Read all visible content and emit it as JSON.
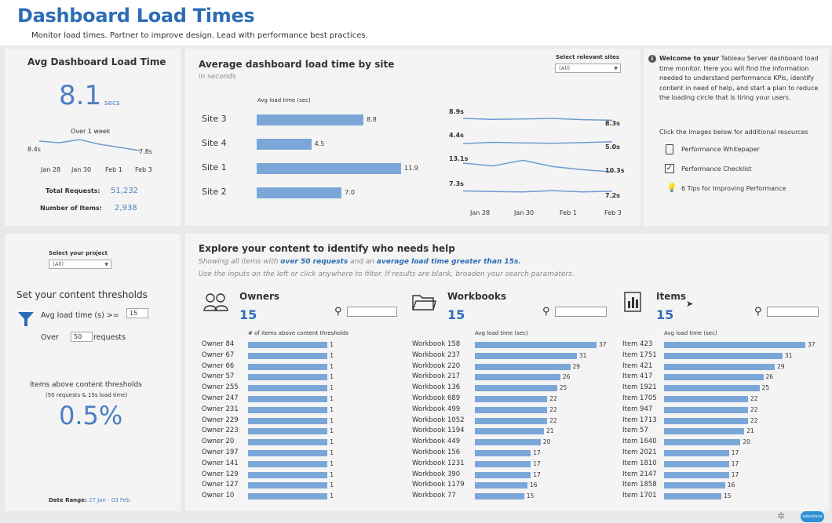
{
  "header": {
    "title": "Dashboard Load Times",
    "subtitle": "Monitor load times. Partner to improve design. Lead with performance best practices."
  },
  "kpi": {
    "title": "Avg Dashboard Load Time",
    "value": "8.1",
    "unit": "secs",
    "spark_title": "Over 1 week",
    "spark_start": "8.4s",
    "spark_end": "7.8s",
    "spark_values": [
      8.4,
      8.3,
      8.5,
      8.2,
      8.0,
      7.8
    ],
    "dates": [
      "Jan 28",
      "Jan 30",
      "Feb 1",
      "Feb 3"
    ],
    "total_requests_label": "Total Requests:",
    "total_requests": "51,232",
    "items_label": "Number of Items:",
    "items": "2,938"
  },
  "site_chart": {
    "title": "Average dashboard load time by site",
    "subtitle": "in seconds",
    "filter_label": "Select relevant sites",
    "filter_value": "(All)",
    "axis_label": "Avg load time (sec)",
    "max": 11.9,
    "sites": [
      {
        "name": "Site 3",
        "value": 8.8,
        "label": "8.8",
        "start": "8.9s",
        "end": "8.3s",
        "trend": [
          8.9,
          8.6,
          8.7,
          8.9,
          8.5,
          8.3
        ]
      },
      {
        "name": "Site 4",
        "value": 4.5,
        "label": "4.5",
        "start": "4.4s",
        "end": "5.0s",
        "trend": [
          4.4,
          4.8,
          4.6,
          4.5,
          4.7,
          5.0
        ]
      },
      {
        "name": "Site 1",
        "value": 11.9,
        "label": "11.9",
        "start": "13.1s",
        "end": "10.3s",
        "trend": [
          13.1,
          12.2,
          14.0,
          12.0,
          11.0,
          10.3
        ]
      },
      {
        "name": "Site 2",
        "value": 7.0,
        "label": "7.0",
        "start": "7.3s",
        "end": "7.2s",
        "trend": [
          7.3,
          7.1,
          7.0,
          7.4,
          7.0,
          7.2
        ]
      }
    ],
    "dates": [
      "Jan 28",
      "Jan 30",
      "Feb 1",
      "Feb 3"
    ]
  },
  "info": {
    "welcome_bold": "Welcome to your",
    "welcome_text": "Tableau Server dashboard load time monitor. Here you will find the information needed to understand performance KPIs, identify content in need of help, and start a plan to reduce the loading circle that is tiring your users.",
    "resources_intro": "Click the images below for additional resources",
    "links": [
      "Performance Whitepaper",
      "Performance Checklist",
      "6 Tips for Improving Performance"
    ]
  },
  "controls": {
    "project_label": "Select your project",
    "project_value": "(All)",
    "thresholds_title": "Set your content thresholds",
    "load_label": "Avg load time (s) >=",
    "load_value": "15",
    "over_label": "Over",
    "over_value": "50",
    "requests_label": "requests",
    "above_title": "Items above content thresholds",
    "above_sub": "(50 requests & 15s load time)",
    "above_value": "0.5%",
    "date_range_label": "Date Range:",
    "date_range": "27 Jan - 03 Feb"
  },
  "explore": {
    "title": "Explore your content to identify who needs help",
    "line1_a": "Showing all items with ",
    "line1_b": "over 50 requests",
    "line1_c": " and an ",
    "line1_d": "average load time greater than 15s.",
    "line2": "Use the inputs on the left or click anywhere to filter. If results are blank, broaden your search paramaters."
  },
  "owners": {
    "title": "Owners",
    "count": "15",
    "axis": "# of items above content thresholds",
    "max": 1.6,
    "rows": [
      {
        "name": "Owner 84",
        "value": 1
      },
      {
        "name": "Owner 67",
        "value": 1
      },
      {
        "name": "Owner 66",
        "value": 1
      },
      {
        "name": "Owner 57",
        "value": 1
      },
      {
        "name": "Owner 255",
        "value": 1
      },
      {
        "name": "Owner 247",
        "value": 1
      },
      {
        "name": "Owner 231",
        "value": 1
      },
      {
        "name": "Owner 229",
        "value": 1
      },
      {
        "name": "Owner 223",
        "value": 1
      },
      {
        "name": "Owner 20",
        "value": 1
      },
      {
        "name": "Owner 197",
        "value": 1
      },
      {
        "name": "Owner 141",
        "value": 1
      },
      {
        "name": "Owner 129",
        "value": 1
      },
      {
        "name": "Owner 127",
        "value": 1
      },
      {
        "name": "Owner 10",
        "value": 1
      }
    ]
  },
  "workbooks": {
    "title": "Workbooks",
    "count": "15",
    "axis": "Avg load time (sec)",
    "max": 37,
    "rows": [
      {
        "name": "Workbook 158",
        "value": 37
      },
      {
        "name": "Workbook 237",
        "value": 31
      },
      {
        "name": "Workbook 220",
        "value": 29
      },
      {
        "name": "Workbook 217",
        "value": 26
      },
      {
        "name": "Workbook 136",
        "value": 25
      },
      {
        "name": "Workbook 689",
        "value": 22
      },
      {
        "name": "Workbook 499",
        "value": 22
      },
      {
        "name": "Workbook 1052",
        "value": 22
      },
      {
        "name": "Workbook 1194",
        "value": 21
      },
      {
        "name": "Workbook 449",
        "value": 20
      },
      {
        "name": "Workbook 156",
        "value": 17
      },
      {
        "name": "Workbook 1231",
        "value": 17
      },
      {
        "name": "Workbook 390",
        "value": 17
      },
      {
        "name": "Workbook 1179",
        "value": 16
      },
      {
        "name": "Workbook 77",
        "value": 15
      }
    ]
  },
  "items": {
    "title": "Items",
    "count": "15",
    "axis": "Avg load time (sec)",
    "max": 37,
    "rows": [
      {
        "name": "Item 423",
        "value": 37
      },
      {
        "name": "Item 1751",
        "value": 31
      },
      {
        "name": "Item 421",
        "value": 29
      },
      {
        "name": "Item 417",
        "value": 26
      },
      {
        "name": "Item 1921",
        "value": 25
      },
      {
        "name": "Item 1705",
        "value": 22
      },
      {
        "name": "Item 947",
        "value": 22
      },
      {
        "name": "Item 1713",
        "value": 22
      },
      {
        "name": "Item 57",
        "value": 21
      },
      {
        "name": "Item 1640",
        "value": 20
      },
      {
        "name": "Item 2021",
        "value": 17
      },
      {
        "name": "Item 1810",
        "value": 17
      },
      {
        "name": "Item 2147",
        "value": 17
      },
      {
        "name": "Item 1858",
        "value": 16
      },
      {
        "name": "Item 1701",
        "value": 15
      }
    ]
  },
  "footer": {
    "badge": "salesforce"
  }
}
